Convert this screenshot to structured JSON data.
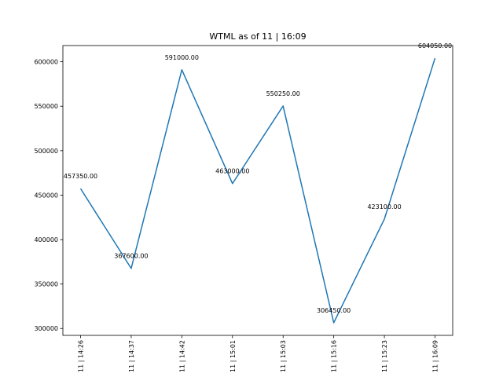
{
  "chart_data": {
    "type": "line",
    "title": "WTML as of 11 | 16:09",
    "xlabel": "",
    "ylabel": "",
    "categories": [
      "11 | 14:26",
      "11 | 14:37",
      "11 | 14:42",
      "11 | 15:01",
      "11 | 15:03",
      "11 | 15:16",
      "11 | 15:23",
      "11 | 16:09"
    ],
    "values": [
      457350,
      367600,
      591000,
      463000,
      550250,
      306450,
      423100,
      604050
    ],
    "data_labels": [
      "457350.00",
      "367600.00",
      "591000.00",
      "463000.00",
      "550250.00",
      "306450.00",
      "423100.00",
      "604050.00"
    ],
    "yticks": [
      300000,
      350000,
      400000,
      450000,
      500000,
      550000,
      600000
    ],
    "ytick_labels": [
      "300000",
      "350000",
      "400000",
      "450000",
      "500000",
      "550000",
      "600000"
    ],
    "ylim": [
      292270,
      618230
    ],
    "grid": false,
    "line_color": "#1f77b4"
  }
}
